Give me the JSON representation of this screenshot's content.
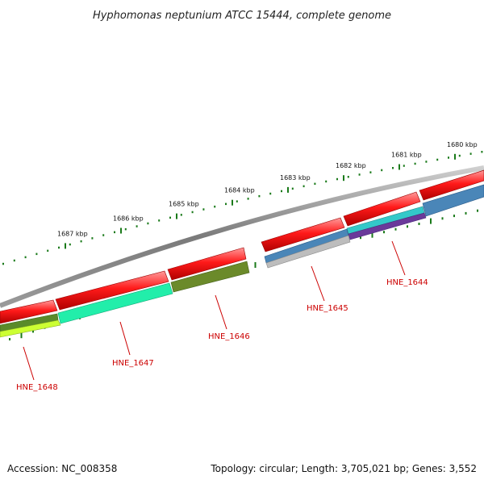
{
  "title": "Hyphomonas neptunium ATCC 15444, complete genome",
  "footer": {
    "accession": "Accession: NC_008358",
    "stats": "Topology: circular; Length: 3,705,021 bp; Genes: 3,552"
  },
  "colors": {
    "backbone": "#8a8a8a",
    "forward_feature": "#ee1111",
    "tick": "#1a7a1a",
    "label": "#cc0000"
  },
  "scale_ticks": [
    {
      "label": "1680 kbp",
      "kbp": 1680
    },
    {
      "label": "1681 kbp",
      "kbp": 1681
    },
    {
      "label": "1682 kbp",
      "kbp": 1682
    },
    {
      "label": "1683 kbp",
      "kbp": 1683
    },
    {
      "label": "1684 kbp",
      "kbp": 1684
    },
    {
      "label": "1685 kbp",
      "kbp": 1685
    },
    {
      "label": "1686 kbp",
      "kbp": 1686
    },
    {
      "label": "1687 kbp",
      "kbp": 1687
    }
  ],
  "genes": [
    {
      "label": "HNE_1644",
      "color": "#4a86b8",
      "accent": "#6a3a9a"
    },
    {
      "label": "HNE_1645",
      "color": "#b8b8b8",
      "accent": "#4a86b8"
    },
    {
      "label": "HNE_1646",
      "color": "#6b8a2a",
      "accent": ""
    },
    {
      "label": "HNE_1647",
      "color": "#22eeaa",
      "accent": ""
    },
    {
      "label": "HNE_1648",
      "color": "#ccff33",
      "accent": "#5a8a2a"
    }
  ]
}
